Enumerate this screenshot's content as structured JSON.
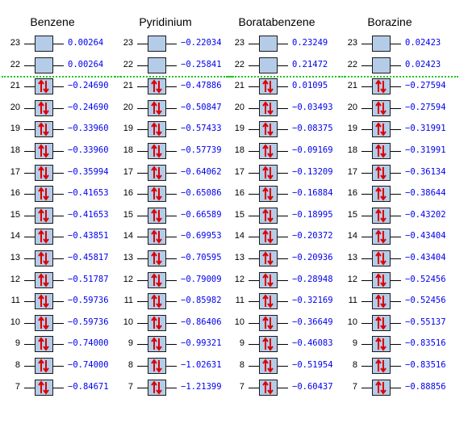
{
  "colors": {
    "box_fill": "#b4cce8",
    "arrow": "#dd0000",
    "energy_text": "#0000ee",
    "homo_lumo_separator": "#22c522"
  },
  "columns": [
    {
      "title": "Benzene",
      "orbitals": [
        {
          "index": "23",
          "energy": "0.00264",
          "occupied": false
        },
        {
          "index": "22",
          "energy": "0.00264",
          "occupied": false
        },
        {
          "index": "21",
          "energy": "−0.24690",
          "occupied": true
        },
        {
          "index": "20",
          "energy": "−0.24690",
          "occupied": true
        },
        {
          "index": "19",
          "energy": "−0.33960",
          "occupied": true
        },
        {
          "index": "18",
          "energy": "−0.33960",
          "occupied": true
        },
        {
          "index": "17",
          "energy": "−0.35994",
          "occupied": true
        },
        {
          "index": "16",
          "energy": "−0.41653",
          "occupied": true
        },
        {
          "index": "15",
          "energy": "−0.41653",
          "occupied": true
        },
        {
          "index": "14",
          "energy": "−0.43851",
          "occupied": true
        },
        {
          "index": "13",
          "energy": "−0.45817",
          "occupied": true
        },
        {
          "index": "12",
          "energy": "−0.51787",
          "occupied": true
        },
        {
          "index": "11",
          "energy": "−0.59736",
          "occupied": true
        },
        {
          "index": "10",
          "energy": "−0.59736",
          "occupied": true
        },
        {
          "index": "9",
          "energy": "−0.74000",
          "occupied": true
        },
        {
          "index": "8",
          "energy": "−0.74000",
          "occupied": true
        },
        {
          "index": "7",
          "energy": "−0.84671",
          "occupied": true
        }
      ]
    },
    {
      "title": "Pyridinium",
      "orbitals": [
        {
          "index": "23",
          "energy": "−0.22034",
          "occupied": false
        },
        {
          "index": "22",
          "energy": "−0.25841",
          "occupied": false
        },
        {
          "index": "21",
          "energy": "−0.47886",
          "occupied": true
        },
        {
          "index": "20",
          "energy": "−0.50847",
          "occupied": true
        },
        {
          "index": "19",
          "energy": "−0.57433",
          "occupied": true
        },
        {
          "index": "18",
          "energy": "−0.57739",
          "occupied": true
        },
        {
          "index": "17",
          "energy": "−0.64062",
          "occupied": true
        },
        {
          "index": "16",
          "energy": "−0.65086",
          "occupied": true
        },
        {
          "index": "15",
          "energy": "−0.66589",
          "occupied": true
        },
        {
          "index": "14",
          "energy": "−0.69953",
          "occupied": true
        },
        {
          "index": "13",
          "energy": "−0.70595",
          "occupied": true
        },
        {
          "index": "12",
          "energy": "−0.79009",
          "occupied": true
        },
        {
          "index": "11",
          "energy": "−0.85982",
          "occupied": true
        },
        {
          "index": "10",
          "energy": "−0.86406",
          "occupied": true
        },
        {
          "index": "9",
          "energy": "−0.99321",
          "occupied": true
        },
        {
          "index": "8",
          "energy": "−1.02631",
          "occupied": true
        },
        {
          "index": "7",
          "energy": "−1.21399",
          "occupied": true
        }
      ]
    },
    {
      "title": "Boratabenzene",
      "orbitals": [
        {
          "index": "23",
          "energy": "0.23249",
          "occupied": false
        },
        {
          "index": "22",
          "energy": "0.21472",
          "occupied": false
        },
        {
          "index": "21",
          "energy": "0.01095",
          "occupied": true
        },
        {
          "index": "20",
          "energy": "−0.03493",
          "occupied": true
        },
        {
          "index": "19",
          "energy": "−0.08375",
          "occupied": true
        },
        {
          "index": "18",
          "energy": "−0.09169",
          "occupied": true
        },
        {
          "index": "17",
          "energy": "−0.13209",
          "occupied": true
        },
        {
          "index": "16",
          "energy": "−0.16884",
          "occupied": true
        },
        {
          "index": "15",
          "energy": "−0.18995",
          "occupied": true
        },
        {
          "index": "14",
          "energy": "−0.20372",
          "occupied": true
        },
        {
          "index": "13",
          "energy": "−0.20936",
          "occupied": true
        },
        {
          "index": "12",
          "energy": "−0.28948",
          "occupied": true
        },
        {
          "index": "11",
          "energy": "−0.32169",
          "occupied": true
        },
        {
          "index": "10",
          "energy": "−0.36649",
          "occupied": true
        },
        {
          "index": "9",
          "energy": "−0.46083",
          "occupied": true
        },
        {
          "index": "8",
          "energy": "−0.51954",
          "occupied": true
        },
        {
          "index": "7",
          "energy": "−0.60437",
          "occupied": true
        }
      ]
    },
    {
      "title": "Borazine",
      "orbitals": [
        {
          "index": "23",
          "energy": "0.02423",
          "occupied": false
        },
        {
          "index": "22",
          "energy": "0.02423",
          "occupied": false
        },
        {
          "index": "21",
          "energy": "−0.27594",
          "occupied": true
        },
        {
          "index": "20",
          "energy": "−0.27594",
          "occupied": true
        },
        {
          "index": "19",
          "energy": "−0.31991",
          "occupied": true
        },
        {
          "index": "18",
          "energy": "−0.31991",
          "occupied": true
        },
        {
          "index": "17",
          "energy": "−0.36134",
          "occupied": true
        },
        {
          "index": "16",
          "energy": "−0.38644",
          "occupied": true
        },
        {
          "index": "15",
          "energy": "−0.43202",
          "occupied": true
        },
        {
          "index": "14",
          "energy": "−0.43404",
          "occupied": true
        },
        {
          "index": "13",
          "energy": "−0.43404",
          "occupied": true
        },
        {
          "index": "12",
          "energy": "−0.52456",
          "occupied": true
        },
        {
          "index": "11",
          "energy": "−0.52456",
          "occupied": true
        },
        {
          "index": "10",
          "energy": "−0.55137",
          "occupied": true
        },
        {
          "index": "9",
          "energy": "−0.83516",
          "occupied": true
        },
        {
          "index": "8",
          "energy": "−0.83516",
          "occupied": true
        },
        {
          "index": "7",
          "energy": "−0.88856",
          "occupied": true
        }
      ]
    }
  ]
}
